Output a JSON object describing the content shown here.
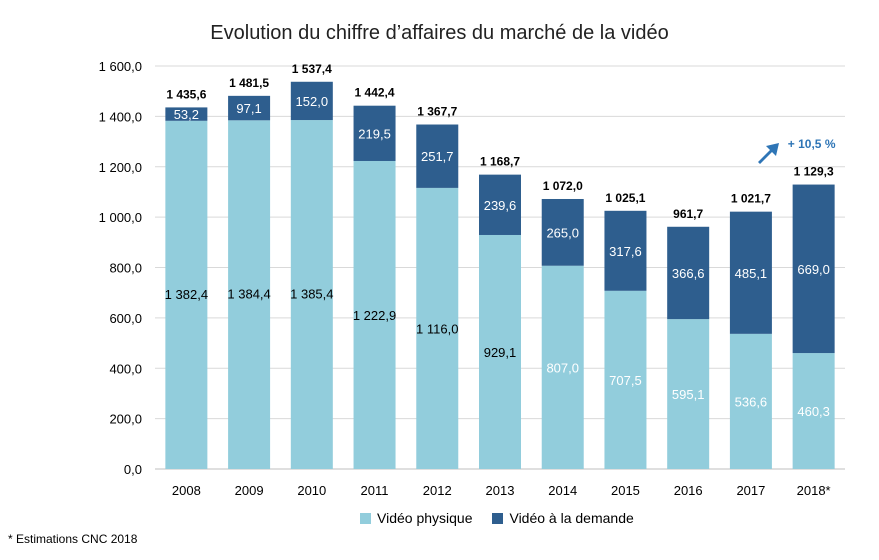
{
  "chart_data": {
    "type": "bar",
    "stacked": true,
    "title": "Evolution du chiffre d’affaires du marché de la vidéo",
    "categories": [
      "2008",
      "2009",
      "2010",
      "2011",
      "2012",
      "2013",
      "2014",
      "2015",
      "2016",
      "2017",
      "2018*"
    ],
    "series": [
      {
        "name": "Vidéo physique",
        "color": "#92cddc",
        "values": [
          1382.4,
          1384.4,
          1385.4,
          1222.9,
          1116.0,
          929.1,
          807.0,
          707.5,
          595.1,
          536.6,
          460.3
        ],
        "labels": [
          "1 382,4",
          "1 384,4",
          "1 385,4",
          "1 222,9",
          "1 116,0",
          "929,1",
          "807,0",
          "707,5",
          "595,1",
          "536,6",
          "460,3"
        ]
      },
      {
        "name": "Vidéo à la demande",
        "color": "#2e5e8e",
        "values": [
          53.2,
          97.1,
          152.0,
          219.5,
          251.7,
          239.6,
          265.0,
          317.6,
          366.6,
          485.1,
          669.0
        ],
        "labels": [
          "53,2",
          "97,1",
          "152,0",
          "219,5",
          "251,7",
          "239,6",
          "265,0",
          "317,6",
          "366,6",
          "485,1",
          "669,0"
        ]
      }
    ],
    "totals": [
      1435.6,
      1481.5,
      1537.4,
      1442.4,
      1367.7,
      1168.7,
      1072.0,
      1025.1,
      961.7,
      1021.7,
      1129.3
    ],
    "total_labels": [
      "1 435,6",
      "1 481,5",
      "1 537,4",
      "1 442,4",
      "1 367,7",
      "1 168,7",
      "1 072,0",
      "1 025,1",
      "961,7",
      "1 021,7",
      "1 129,3"
    ],
    "ylim": [
      0,
      1600
    ],
    "yticks": [
      0,
      200,
      400,
      600,
      800,
      1000,
      1200,
      1400,
      1600
    ],
    "ytick_labels": [
      "0,0",
      "200,0",
      "400,0",
      "600,0",
      "800,0",
      "1 000,0",
      "1 200,0",
      "1 400,0",
      "1 600,0"
    ],
    "grid": true,
    "legend": "bottom",
    "annotation": {
      "text": "+ 10,5 %",
      "color": "#2e75b6"
    }
  },
  "footnote": "* Estimations CNC 2018"
}
